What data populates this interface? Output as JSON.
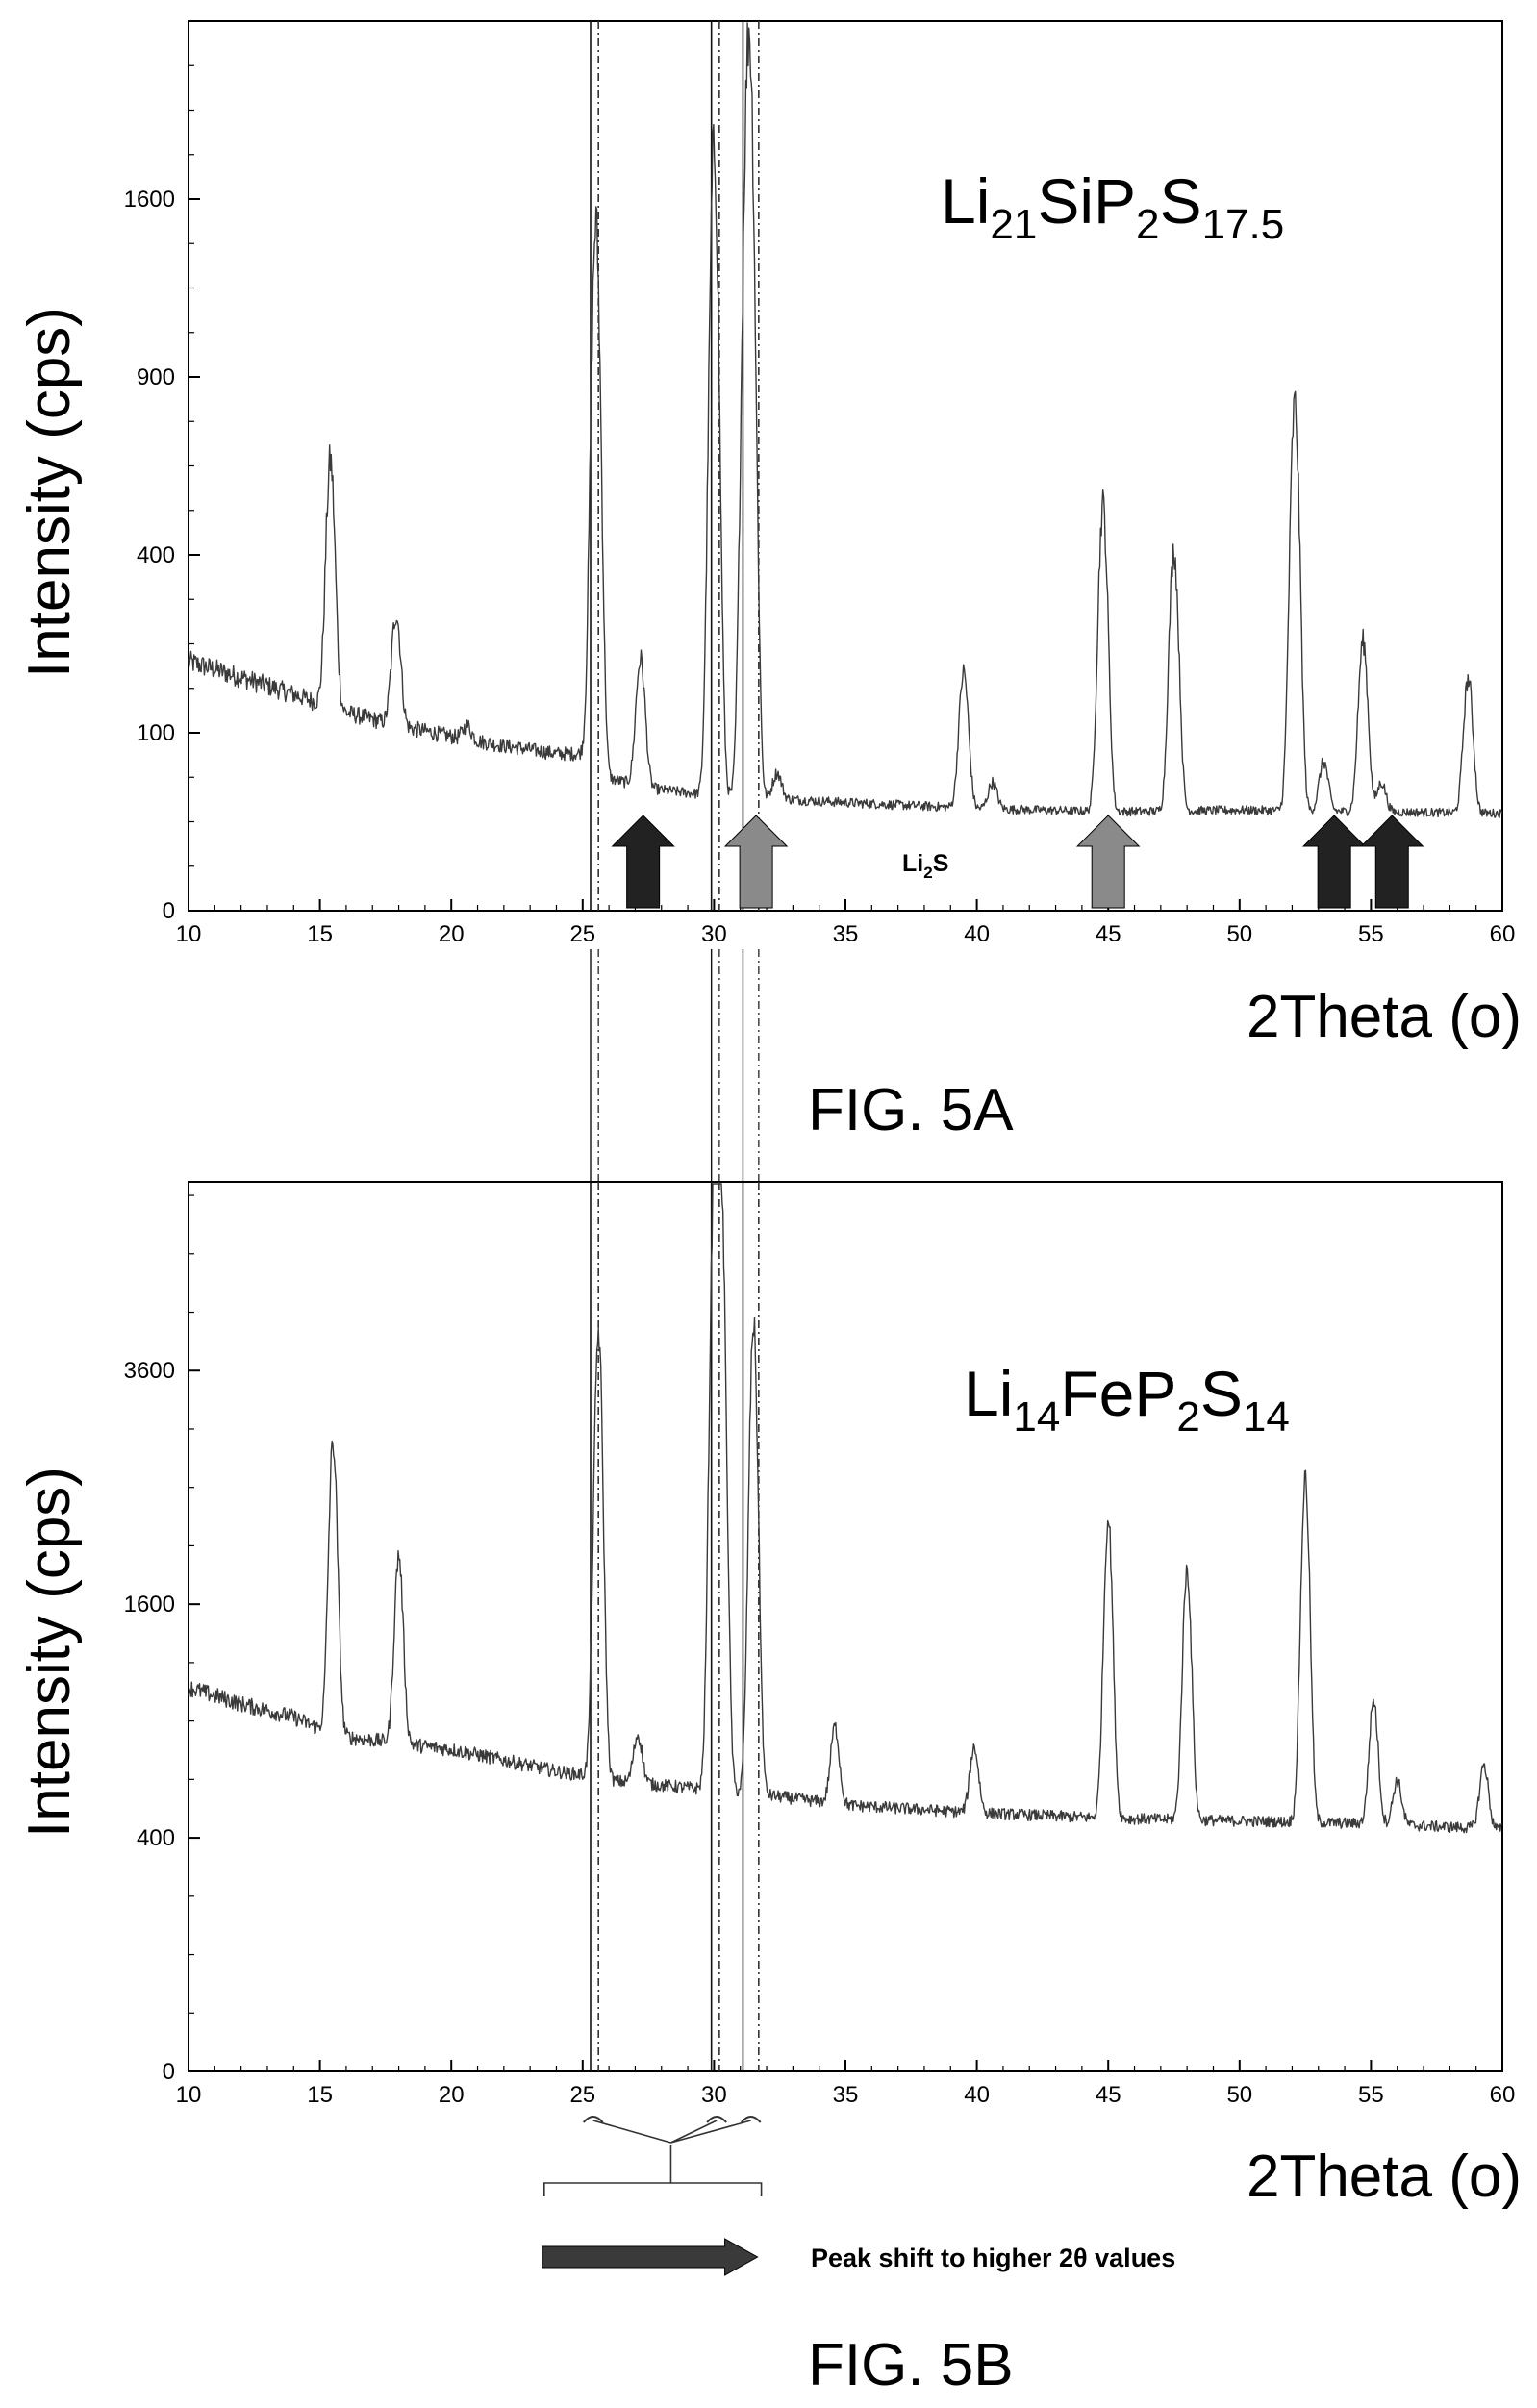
{
  "chart_data": [
    {
      "type": "line",
      "caption": "FIG. 5A",
      "xlabel": "2Theta (o)",
      "ylabel": "Intensity (cps)",
      "xlim": [
        10,
        60
      ],
      "x_ticks": [
        "10",
        "15",
        "20",
        "25",
        "30",
        "35",
        "40",
        "45",
        "50",
        "55",
        "60"
      ],
      "y_scale": "sqrt",
      "ylim": [
        0,
        2500
      ],
      "y_ticks": [
        "0",
        "100",
        "400",
        "900",
        "1600"
      ],
      "formula": {
        "base1": "Li",
        "sub1": "21",
        "base2": "SiP",
        "sub2": "2",
        "base3": "S",
        "sub3": "17.5"
      },
      "series": [
        {
          "background": [
            [
              10,
              196
            ],
            [
              12,
              172
            ],
            [
              14,
              148
            ],
            [
              16,
              124
            ],
            [
              18,
              108
            ],
            [
              20,
              96
            ],
            [
              22,
              86
            ],
            [
              24,
              78
            ],
            [
              25.2,
              78
            ],
            [
              26,
              55
            ],
            [
              28,
              46
            ],
            [
              30,
              42
            ],
            [
              32,
              40
            ],
            [
              35,
              37
            ],
            [
              40,
              33
            ],
            [
              45,
              31
            ],
            [
              50,
              32
            ],
            [
              55,
              31
            ],
            [
              60,
              30
            ]
          ],
          "peaks": [
            [
              15.4,
              640
            ],
            [
              17.9,
              280
            ],
            [
              20.6,
              108
            ],
            [
              25.5,
              1490
            ],
            [
              27.2,
              200
            ],
            [
              30.0,
              1840
            ],
            [
              31.2,
              1220
            ],
            [
              31.4,
              1760
            ],
            [
              32.4,
              60
            ],
            [
              39.5,
              180
            ],
            [
              40.6,
              52
            ],
            [
              44.8,
              520
            ],
            [
              47.5,
              410
            ],
            [
              52.1,
              810
            ],
            [
              53.2,
              70
            ],
            [
              54.7,
              230
            ],
            [
              55.4,
              52
            ],
            [
              58.7,
              170
            ]
          ]
        }
      ],
      "reference_lines": {
        "solid": [
          25.3,
          29.9,
          31.1
        ],
        "dashed": [
          25.6,
          30.2,
          31.7
        ]
      },
      "annotations": [
        {
          "type": "arrow",
          "x": 27.3,
          "color": "#222222"
        },
        {
          "type": "arrow",
          "x": 31.6,
          "color": "#8a8a8a"
        },
        {
          "type": "arrow",
          "x": 45.0,
          "color": "#8a8a8a"
        },
        {
          "type": "arrow",
          "x": 53.6,
          "color": "#222222"
        },
        {
          "type": "arrow",
          "x": 55.8,
          "color": "#222222"
        }
      ],
      "phase_label": {
        "base": "Li",
        "sub": "2",
        "tail": "S"
      }
    },
    {
      "type": "line",
      "caption": "FIG. 5B",
      "xlabel": "2Theta (o)",
      "ylabel": "Intensity (cps)",
      "xlim": [
        10,
        60
      ],
      "x_ticks": [
        "10",
        "15",
        "20",
        "25",
        "30",
        "35",
        "40",
        "45",
        "50",
        "55",
        "60"
      ],
      "y_scale": "sqrt",
      "ylim": [
        0,
        5800
      ],
      "y_ticks": [
        "0",
        "400",
        "1600",
        "3600"
      ],
      "formula": {
        "base1": "Li",
        "sub1": "14",
        "base2": "FeP",
        "sub2": "2",
        "base3": "S",
        "sub3": "14"
      },
      "series": [
        {
          "background": [
            [
              10,
              1080
            ],
            [
              12,
              990
            ],
            [
              14,
              920
            ],
            [
              15,
              860
            ],
            [
              16,
              820
            ],
            [
              18,
              790
            ],
            [
              20,
              760
            ],
            [
              22,
              710
            ],
            [
              24,
              660
            ],
            [
              25.3,
              640
            ],
            [
              26,
              620
            ],
            [
              28,
              600
            ],
            [
              30,
              580
            ],
            [
              32,
              560
            ],
            [
              35,
              520
            ],
            [
              40,
              490
            ],
            [
              45,
              470
            ],
            [
              50,
              460
            ],
            [
              55,
              450
            ],
            [
              60,
              430
            ]
          ],
          "peaks": [
            [
              15.5,
              2900
            ],
            [
              18.0,
              1950
            ],
            [
              25.6,
              4000
            ],
            [
              27.1,
              830
            ],
            [
              30.0,
              5500
            ],
            [
              30.3,
              4900
            ],
            [
              31.5,
              4100
            ],
            [
              34.6,
              870
            ],
            [
              39.9,
              770
            ],
            [
              45.0,
              2250
            ],
            [
              48.0,
              1850
            ],
            [
              52.5,
              2580
            ],
            [
              55.1,
              1010
            ],
            [
              56.0,
              620
            ],
            [
              59.3,
              690
            ]
          ]
        }
      ],
      "reference_lines": {
        "solid": [
          25.3,
          29.9,
          31.1
        ],
        "dashed": [
          25.6,
          30.2,
          31.7
        ]
      },
      "annotation_text": "Peak shift to higher 2θ values"
    }
  ]
}
